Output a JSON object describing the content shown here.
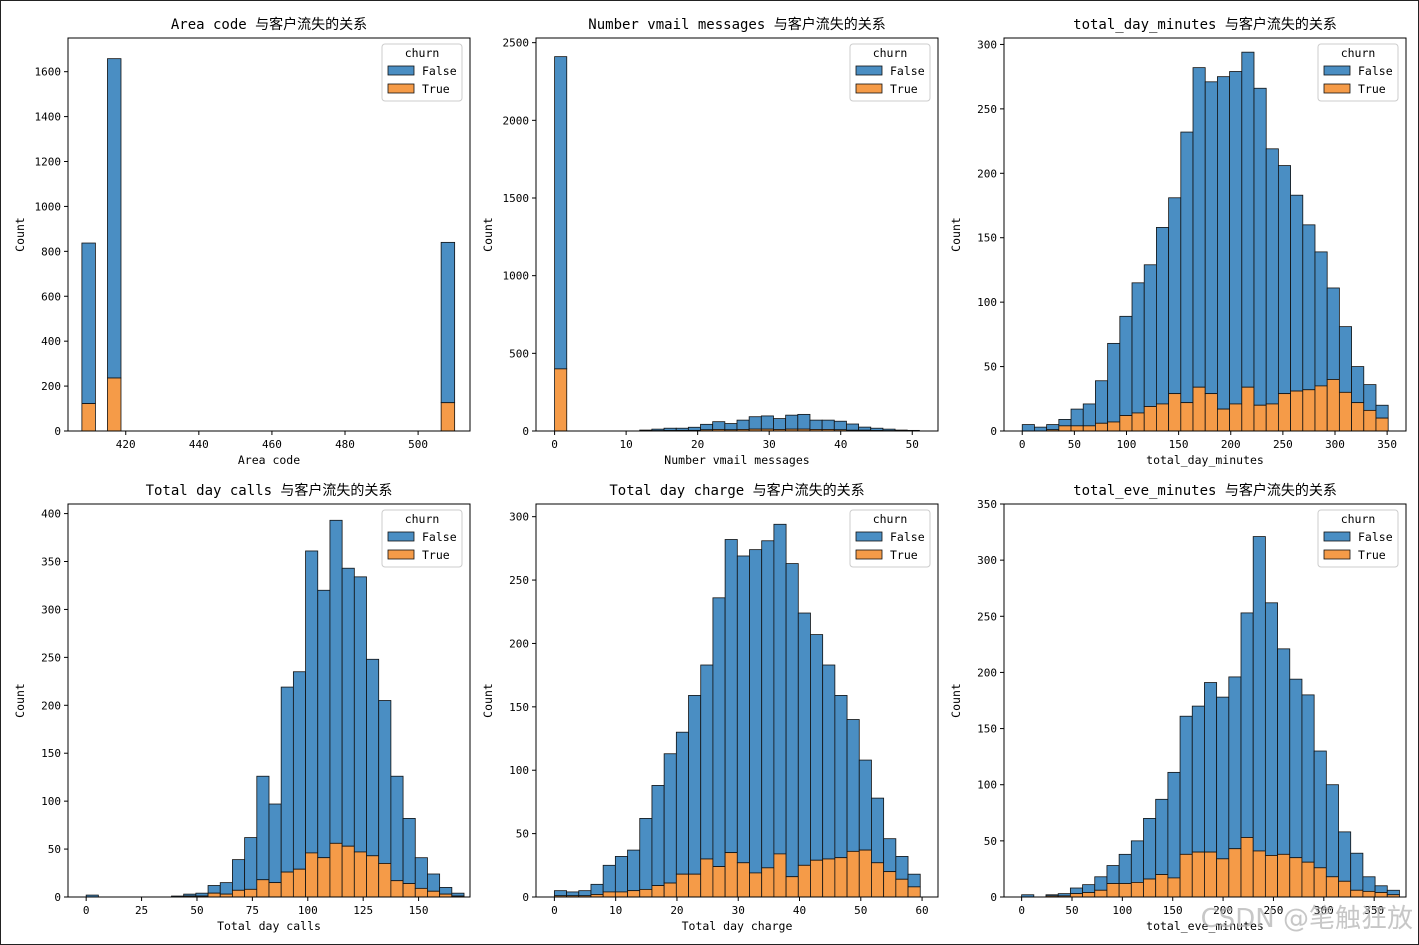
{
  "watermark": "CSDN @笔触狂放",
  "colors": {
    "false": "#4a8ec3",
    "true": "#f59b48",
    "edge": "#111111"
  },
  "legend": {
    "title": "churn",
    "items": [
      "False",
      "True"
    ]
  },
  "chart_data": [
    {
      "type": "bar",
      "stacked": true,
      "title": "Area code 与客户流失的关系",
      "xlabel": "Area code",
      "ylabel": "Count",
      "xlim": [
        404.2,
        514.2
      ],
      "ylim": [
        0,
        1750
      ],
      "xticks": [
        420,
        440,
        460,
        480,
        500
      ],
      "yticks": [
        0,
        200,
        400,
        600,
        800,
        1000,
        1200,
        1400,
        1600
      ],
      "bins": [
        {
          "x0": 408,
          "x1": 411.7,
          "false": 715,
          "true": 122
        },
        {
          "x0": 415,
          "x1": 418.7,
          "false": 1422,
          "true": 236
        },
        {
          "x0": 506.3,
          "x1": 510,
          "false": 714,
          "true": 126
        }
      ]
    },
    {
      "type": "bar",
      "stacked": true,
      "title": "Number vmail messages 与客户流失的关系",
      "xlabel": "Number vmail messages",
      "ylabel": "Count",
      "xlim": [
        -2.6,
        53.6
      ],
      "ylim": [
        0,
        2530
      ],
      "xticks": [
        0,
        10,
        20,
        30,
        40,
        50
      ],
      "yticks": [
        0,
        500,
        1000,
        1500,
        2000,
        2500
      ],
      "bin_start": 0,
      "bin_width": 1.7,
      "false": [
        2010,
        0,
        0,
        0,
        0,
        0,
        0,
        5,
        10,
        15,
        14,
        20,
        35,
        50,
        40,
        60,
        80,
        85,
        70,
        90,
        95,
        60,
        60,
        55,
        40,
        20,
        15,
        10,
        5,
        3
      ],
      "true": [
        400,
        0,
        0,
        0,
        0,
        0,
        0,
        1,
        2,
        3,
        4,
        4,
        8,
        10,
        8,
        10,
        12,
        12,
        10,
        12,
        12,
        10,
        10,
        8,
        5,
        5,
        3,
        2,
        1,
        1
      ]
    },
    {
      "type": "bar",
      "stacked": true,
      "title": "total_day_minutes 与客户流失的关系",
      "xlabel": "total_day_minutes",
      "ylabel": "Count",
      "xlim": [
        -17.5,
        368.1
      ],
      "ylim": [
        0,
        305
      ],
      "xticks": [
        0,
        50,
        100,
        150,
        200,
        250,
        300,
        350
      ],
      "yticks": [
        0,
        50,
        100,
        150,
        200,
        250,
        300
      ],
      "bin_start": 0,
      "bin_width": 11.7,
      "false": [
        5,
        3,
        4,
        5,
        13,
        17,
        33,
        61,
        77,
        101,
        110,
        137,
        152,
        210,
        248,
        242,
        258,
        258,
        260,
        246,
        198,
        177,
        152,
        128,
        104,
        71,
        51,
        28,
        20,
        10
      ],
      "true": [
        0,
        0,
        1,
        4,
        4,
        4,
        6,
        7,
        12,
        14,
        19,
        21,
        29,
        22,
        34,
        29,
        17,
        21,
        34,
        20,
        21,
        29,
        31,
        32,
        35,
        40,
        30,
        22,
        16,
        10
      ]
    },
    {
      "type": "bar",
      "stacked": true,
      "title": "Total day calls 与客户流失的关系",
      "xlabel": "Total day calls",
      "ylabel": "Count",
      "xlim": [
        -8.2,
        173.2
      ],
      "ylim": [
        0,
        410
      ],
      "xticks": [
        0,
        25,
        50,
        75,
        100,
        125,
        150
      ],
      "yticks": [
        0,
        50,
        100,
        150,
        200,
        250,
        300,
        350,
        400
      ],
      "bin_start": 0,
      "bin_width": 5.5,
      "false": [
        2,
        0,
        0,
        0,
        0,
        0,
        0,
        1,
        2,
        3,
        8,
        12,
        32,
        54,
        108,
        82,
        193,
        206,
        315,
        279,
        337,
        290,
        287,
        205,
        170,
        109,
        68,
        32,
        18,
        7,
        3
      ],
      "true": [
        0,
        0,
        0,
        0,
        0,
        0,
        0,
        0,
        1,
        1,
        4,
        3,
        7,
        8,
        18,
        15,
        26,
        29,
        46,
        41,
        56,
        53,
        47,
        43,
        35,
        17,
        14,
        9,
        6,
        3,
        1
      ]
    },
    {
      "type": "bar",
      "stacked": true,
      "title": "Total day charge 与客户流失的关系",
      "xlabel": "Total day charge",
      "ylabel": "Count",
      "xlim": [
        -3.0,
        62.6
      ],
      "ylim": [
        0,
        310
      ],
      "xticks": [
        0,
        10,
        20,
        30,
        40,
        50,
        60
      ],
      "yticks": [
        0,
        50,
        100,
        150,
        200,
        250,
        300
      ],
      "bin_start": 0,
      "bin_width": 1.99,
      "false": [
        4,
        3,
        4,
        8,
        21,
        28,
        32,
        56,
        79,
        102,
        112,
        141,
        153,
        212,
        247,
        242,
        255,
        258,
        260,
        247,
        199,
        178,
        153,
        128,
        104,
        71,
        51,
        26,
        18,
        10
      ],
      "true": [
        1,
        1,
        1,
        2,
        4,
        4,
        5,
        6,
        9,
        11,
        18,
        18,
        30,
        24,
        35,
        27,
        19,
        23,
        34,
        16,
        25,
        29,
        30,
        31,
        36,
        37,
        27,
        20,
        14,
        8
      ]
    },
    {
      "type": "bar",
      "stacked": true,
      "title": "total_eve_minutes 与客户流失的关系",
      "xlabel": "total_eve_minutes",
      "ylabel": "Count",
      "xlim": [
        -17.5,
        381.6
      ],
      "ylim": [
        0,
        350
      ],
      "xticks": [
        0,
        50,
        100,
        150,
        200,
        250,
        300,
        350
      ],
      "yticks": [
        0,
        50,
        100,
        150,
        200,
        250,
        300,
        350
      ],
      "bin_start": 0,
      "bin_width": 12.1,
      "false": [
        2,
        0,
        1,
        2,
        5,
        7,
        12,
        16,
        26,
        37,
        54,
        67,
        94,
        123,
        130,
        151,
        144,
        153,
        200,
        280,
        225,
        183,
        159,
        149,
        104,
        82,
        44,
        33,
        13,
        6,
        4
      ],
      "true": [
        0,
        0,
        1,
        1,
        3,
        4,
        6,
        12,
        12,
        13,
        16,
        20,
        17,
        38,
        40,
        40,
        34,
        43,
        53,
        41,
        37,
        38,
        35,
        31,
        26,
        18,
        14,
        6,
        5,
        4,
        2
      ]
    }
  ]
}
